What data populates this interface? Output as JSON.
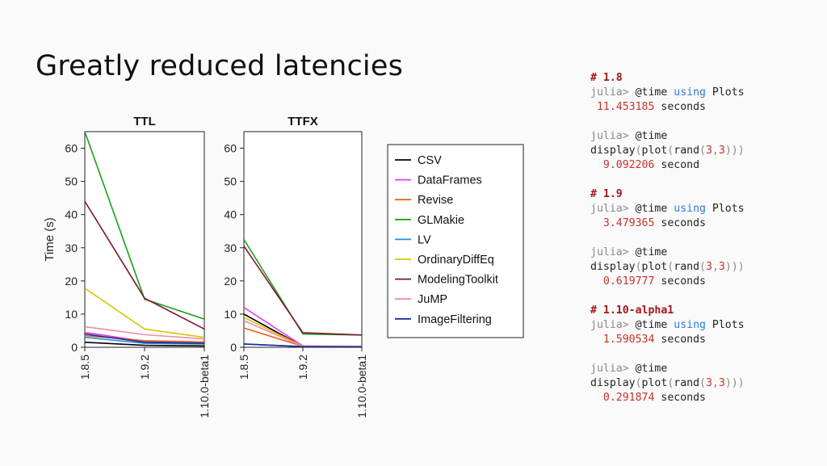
{
  "slide": {
    "title": "Greatly reduced latencies"
  },
  "chart_data": [
    {
      "type": "line",
      "title": "TTL",
      "ylabel": "Time (s)",
      "xlabel": "",
      "categories": [
        "1.8.5",
        "1.9.2",
        "1.10.0-beta1"
      ],
      "ylim": [
        0,
        65
      ],
      "yticks": [
        0,
        10,
        20,
        30,
        40,
        50,
        60
      ],
      "series": [
        {
          "name": "CSV",
          "color": "#000000",
          "values": [
            1.5,
            0.6,
            0.4
          ]
        },
        {
          "name": "DataFrames",
          "color": "#e040e0",
          "values": [
            4.5,
            1.8,
            1.6
          ]
        },
        {
          "name": "Revise",
          "color": "#e8641c",
          "values": [
            3.5,
            2.0,
            1.6
          ]
        },
        {
          "name": "GLMakie",
          "color": "#1aa01a",
          "values": [
            65,
            14.5,
            8.5
          ]
        },
        {
          "name": "LV",
          "color": "#1f8fdc",
          "values": [
            3.0,
            1.2,
            1.0
          ]
        },
        {
          "name": "OrdinaryDiffEq",
          "color": "#e0c000",
          "values": [
            17.8,
            5.5,
            3.0
          ]
        },
        {
          "name": "ModelingToolkit",
          "color": "#7a1a30",
          "values": [
            44,
            14.8,
            5.5
          ]
        },
        {
          "name": "JuMP",
          "color": "#f08ca0",
          "values": [
            6.2,
            3.8,
            2.5
          ]
        },
        {
          "name": "ImageFiltering",
          "color": "#1a2a9c",
          "values": [
            4.0,
            1.5,
            1.2
          ]
        }
      ]
    },
    {
      "type": "line",
      "title": "TTFX",
      "ylabel": "",
      "xlabel": "",
      "categories": [
        "1.8.5",
        "1.9.2",
        "1.10.0-beta1"
      ],
      "ylim": [
        0,
        65
      ],
      "yticks": [
        0,
        10,
        20,
        30,
        40,
        50,
        60
      ],
      "series": [
        {
          "name": "CSV",
          "color": "#000000",
          "values": [
            10,
            0.3,
            0.2
          ]
        },
        {
          "name": "DataFrames",
          "color": "#e040e0",
          "values": [
            12,
            0.4,
            0.3
          ]
        },
        {
          "name": "Revise",
          "color": "#e8641c",
          "values": [
            5.8,
            0.3,
            0.2
          ]
        },
        {
          "name": "GLMakie",
          "color": "#1aa01a",
          "values": [
            32.5,
            4.0,
            3.7
          ]
        },
        {
          "name": "LV",
          "color": "#1f8fdc",
          "values": [
            1.0,
            0.2,
            0.15
          ]
        },
        {
          "name": "OrdinaryDiffEq",
          "color": "#e0c000",
          "values": [
            9.0,
            0.3,
            0.2
          ]
        },
        {
          "name": "ModelingToolkit",
          "color": "#7a1a30",
          "values": [
            30.5,
            4.4,
            3.7
          ]
        },
        {
          "name": "JuMP",
          "color": "#f08ca0",
          "values": [
            8.0,
            0.3,
            0.2
          ]
        },
        {
          "name": "ImageFiltering",
          "color": "#1a2a9c",
          "values": [
            1.0,
            0.2,
            0.15
          ]
        }
      ]
    }
  ],
  "legend": {
    "placement": "right",
    "entries": [
      "CSV",
      "DataFrames",
      "Revise",
      "GLMakie",
      "LV",
      "OrdinaryDiffEq",
      "ModelingToolkit",
      "JuMP",
      "ImageFiltering"
    ]
  },
  "code": {
    "blocks": [
      {
        "comment": "# 1.8",
        "prompt": "julia>",
        "macro": "@time",
        "kw": "using",
        "pkg": "Plots",
        "time": "11.453185",
        "unit": "seconds"
      },
      {
        "prompt": "julia>",
        "macro": "@time",
        "call1": "display",
        "call2": "plot",
        "call3": "rand",
        "arg1": "3",
        "arg2": "3",
        "time": "9.092206",
        "unit": "second"
      },
      {
        "comment": "# 1.9",
        "prompt": "julia>",
        "macro": "@time",
        "kw": "using",
        "pkg": "Plots",
        "time": "3.479365",
        "unit": "seconds"
      },
      {
        "prompt": "julia>",
        "macro": "@time",
        "call1": "display",
        "call2": "plot",
        "call3": "rand",
        "arg1": "3",
        "arg2": "3",
        "time": "0.619777",
        "unit": "seconds"
      },
      {
        "comment": "# 1.10-alpha1",
        "prompt": "julia>",
        "macro": "@time",
        "kw": "using",
        "pkg": "Plots",
        "time": "1.590534",
        "unit": "seconds"
      },
      {
        "prompt": "julia>",
        "macro": "@time",
        "call1": "display",
        "call2": "plot",
        "call3": "rand",
        "arg1": "3",
        "arg2": "3",
        "time": "0.291874",
        "unit": "seconds"
      }
    ]
  }
}
